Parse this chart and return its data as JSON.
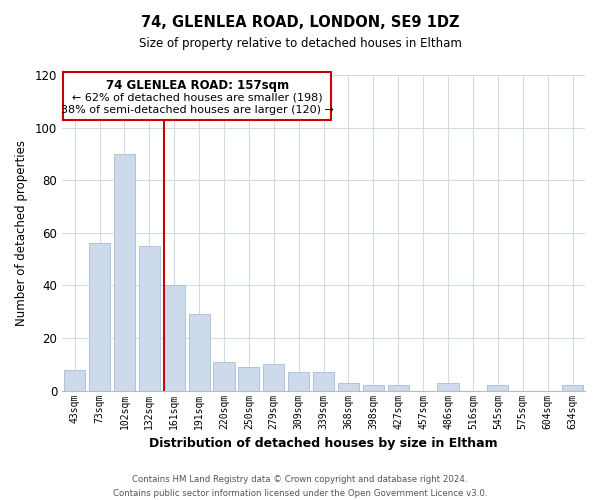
{
  "title": "74, GLENLEA ROAD, LONDON, SE9 1DZ",
  "subtitle": "Size of property relative to detached houses in Eltham",
  "xlabel": "Distribution of detached houses by size in Eltham",
  "ylabel": "Number of detached properties",
  "categories": [
    "43sqm",
    "73sqm",
    "102sqm",
    "132sqm",
    "161sqm",
    "191sqm",
    "220sqm",
    "250sqm",
    "279sqm",
    "309sqm",
    "339sqm",
    "368sqm",
    "398sqm",
    "427sqm",
    "457sqm",
    "486sqm",
    "516sqm",
    "545sqm",
    "575sqm",
    "604sqm",
    "634sqm"
  ],
  "values": [
    8,
    56,
    90,
    55,
    40,
    29,
    11,
    9,
    10,
    7,
    7,
    3,
    2,
    2,
    0,
    3,
    0,
    2,
    0,
    0,
    2
  ],
  "bar_color": "#ccdaeb",
  "bar_edge_color": "#a8bdd4",
  "highlight_line_color": "#cc0000",
  "ylim": [
    0,
    120
  ],
  "yticks": [
    0,
    20,
    40,
    60,
    80,
    100,
    120
  ],
  "annotation_title": "74 GLENLEA ROAD: 157sqm",
  "annotation_line1": "← 62% of detached houses are smaller (198)",
  "annotation_line2": "38% of semi-detached houses are larger (120) →",
  "annotation_box_color": "#ffffff",
  "annotation_box_edge_color": "#cc0000",
  "footer_line1": "Contains HM Land Registry data © Crown copyright and database right 2024.",
  "footer_line2": "Contains public sector information licensed under the Open Government Licence v3.0.",
  "background_color": "#ffffff",
  "grid_color": "#d0dce8"
}
